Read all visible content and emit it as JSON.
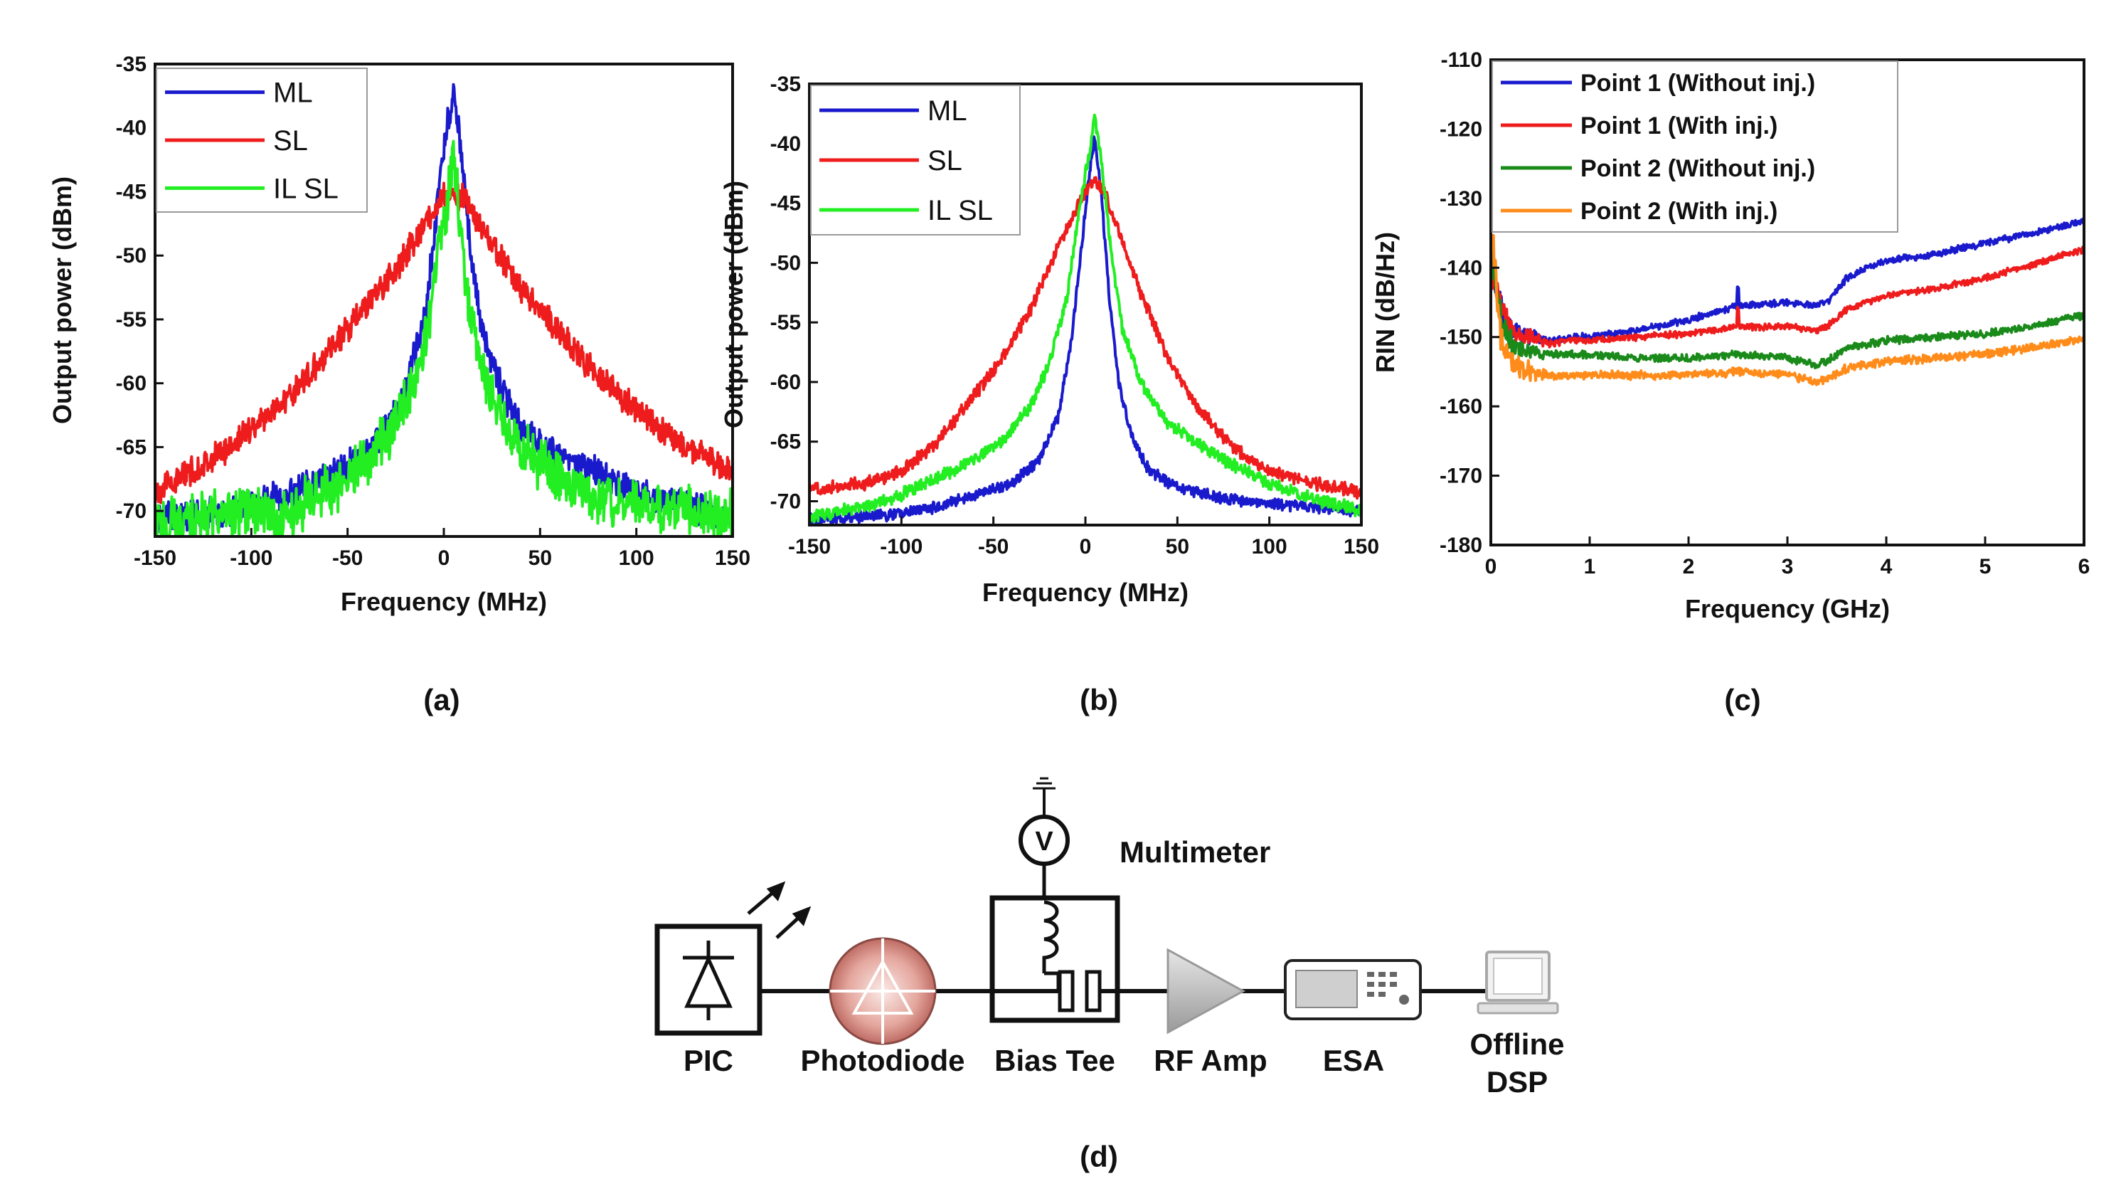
{
  "panels": [
    {
      "key": "a",
      "caption": "(a)",
      "chart_data": {
        "type": "line",
        "xlabel": "Frequency (MHz)",
        "ylabel": "Output power (dBm)",
        "xlim": [
          -150,
          150
        ],
        "ylim": [
          -72,
          -35
        ],
        "xticks": [
          -150,
          -100,
          -50,
          0,
          50,
          100,
          150
        ],
        "yticks": [
          -35,
          -40,
          -45,
          -50,
          -55,
          -60,
          -65,
          -70
        ],
        "legend": "top-left",
        "series": [
          {
            "name": "ML",
            "color": "#1a1acd",
            "noise": 1.0,
            "points": [
              [
                -150,
                -70.5
              ],
              [
                -120,
                -70.2
              ],
              [
                -100,
                -69.5
              ],
              [
                -80,
                -68.7
              ],
              [
                -60,
                -67.2
              ],
              [
                -40,
                -65.5
              ],
              [
                -30,
                -63.5
              ],
              [
                -20,
                -60.5
              ],
              [
                -10,
                -55
              ],
              [
                -4,
                -47
              ],
              [
                0,
                -41.5
              ],
              [
                5,
                -37
              ],
              [
                9,
                -42
              ],
              [
                14,
                -50
              ],
              [
                20,
                -56
              ],
              [
                30,
                -60.5
              ],
              [
                40,
                -63.5
              ],
              [
                55,
                -65.5
              ],
              [
                75,
                -66.5
              ],
              [
                100,
                -68.5
              ],
              [
                125,
                -69.5
              ],
              [
                150,
                -70.5
              ]
            ]
          },
          {
            "name": "SL",
            "color": "#ee1c1c",
            "noise": 0.9,
            "points": [
              [
                -150,
                -68.5
              ],
              [
                -120,
                -66
              ],
              [
                -100,
                -63.5
              ],
              [
                -80,
                -61
              ],
              [
                -60,
                -57.5
              ],
              [
                -40,
                -54
              ],
              [
                -20,
                -50
              ],
              [
                -10,
                -47.5
              ],
              [
                0,
                -45.5
              ],
              [
                5,
                -45.2
              ],
              [
                10,
                -45.5
              ],
              [
                20,
                -48
              ],
              [
                40,
                -52.5
              ],
              [
                60,
                -56
              ],
              [
                80,
                -59.5
              ],
              [
                100,
                -62
              ],
              [
                120,
                -64.5
              ],
              [
                150,
                -67
              ]
            ]
          },
          {
            "name": "IL SL",
            "color": "#22ee22",
            "noise": 1.7,
            "points": [
              [
                -150,
                -71
              ],
              [
                -120,
                -70.5
              ],
              [
                -100,
                -70
              ],
              [
                -85,
                -71
              ],
              [
                -70,
                -69
              ],
              [
                -50,
                -67.5
              ],
              [
                -30,
                -64.5
              ],
              [
                -20,
                -61.5
              ],
              [
                -10,
                -57
              ],
              [
                -4,
                -51
              ],
              [
                0,
                -47.5
              ],
              [
                5,
                -42
              ],
              [
                9,
                -48
              ],
              [
                14,
                -55
              ],
              [
                20,
                -59
              ],
              [
                30,
                -62.5
              ],
              [
                40,
                -65
              ],
              [
                60,
                -67.5
              ],
              [
                80,
                -69
              ],
              [
                100,
                -69.5
              ],
              [
                125,
                -70
              ],
              [
                150,
                -70.5
              ]
            ]
          }
        ]
      }
    },
    {
      "key": "b",
      "caption": "(b)",
      "chart_data": {
        "type": "line",
        "xlabel": "Frequency (MHz)",
        "ylabel": "Output power (dBm)",
        "xlim": [
          -150,
          150
        ],
        "ylim": [
          -72,
          -35
        ],
        "xticks": [
          -150,
          -100,
          -50,
          0,
          50,
          100,
          150
        ],
        "yticks": [
          -35,
          -40,
          -45,
          -50,
          -55,
          -60,
          -65,
          -70
        ],
        "legend": "top-left",
        "series": [
          {
            "name": "ML",
            "color": "#1a1acd",
            "noise": 0.4,
            "points": [
              [
                -150,
                -71.5
              ],
              [
                -120,
                -71.3
              ],
              [
                -100,
                -71
              ],
              [
                -80,
                -70.5
              ],
              [
                -60,
                -69.5
              ],
              [
                -40,
                -68.5
              ],
              [
                -25,
                -66.5
              ],
              [
                -15,
                -63
              ],
              [
                -8,
                -57
              ],
              [
                -3,
                -50
              ],
              [
                1,
                -44
              ],
              [
                5,
                -39.5
              ],
              [
                9,
                -45
              ],
              [
                13,
                -53
              ],
              [
                18,
                -60
              ],
              [
                25,
                -64.5
              ],
              [
                35,
                -67.5
              ],
              [
                50,
                -68.8
              ],
              [
                75,
                -69.8
              ],
              [
                100,
                -70.2
              ],
              [
                125,
                -70.5
              ],
              [
                150,
                -70.8
              ]
            ]
          },
          {
            "name": "SL",
            "color": "#ee1c1c",
            "noise": 0.45,
            "points": [
              [
                -150,
                -69
              ],
              [
                -120,
                -68.5
              ],
              [
                -100,
                -67.5
              ],
              [
                -80,
                -65
              ],
              [
                -60,
                -61
              ],
              [
                -45,
                -58
              ],
              [
                -30,
                -54
              ],
              [
                -20,
                -50.5
              ],
              [
                -10,
                -47
              ],
              [
                0,
                -44
              ],
              [
                5,
                -43
              ],
              [
                10,
                -44
              ],
              [
                20,
                -48
              ],
              [
                30,
                -52.5
              ],
              [
                45,
                -58
              ],
              [
                60,
                -62
              ],
              [
                80,
                -65.5
              ],
              [
                100,
                -67.5
              ],
              [
                125,
                -68.5
              ],
              [
                150,
                -69.3
              ]
            ]
          },
          {
            "name": "IL SL",
            "color": "#22ee22",
            "noise": 0.45,
            "points": [
              [
                -150,
                -71.3
              ],
              [
                -120,
                -70.5
              ],
              [
                -100,
                -69.5
              ],
              [
                -80,
                -68
              ],
              [
                -60,
                -66.5
              ],
              [
                -45,
                -65
              ],
              [
                -30,
                -62
              ],
              [
                -20,
                -58.5
              ],
              [
                -10,
                -53
              ],
              [
                -3,
                -45
              ],
              [
                2,
                -41
              ],
              [
                5,
                -37.5
              ],
              [
                9,
                -42
              ],
              [
                14,
                -49
              ],
              [
                20,
                -55.5
              ],
              [
                30,
                -60
              ],
              [
                45,
                -63.5
              ],
              [
                60,
                -65
              ],
              [
                80,
                -67
              ],
              [
                100,
                -68.5
              ],
              [
                125,
                -69.8
              ],
              [
                150,
                -70.8
              ]
            ]
          }
        ]
      }
    },
    {
      "key": "c",
      "caption": "(c)",
      "chart_data": {
        "type": "line",
        "xlabel": "Frequency (GHz)",
        "ylabel": "RIN (dB/Hz)",
        "xlim": [
          0,
          6
        ],
        "ylim": [
          -180,
          -110
        ],
        "xticks": [
          0,
          1,
          2,
          3,
          4,
          5,
          6
        ],
        "yticks": [
          -110,
          -120,
          -130,
          -140,
          -150,
          -160,
          -170,
          -180
        ],
        "legend": "top-right",
        "series": [
          {
            "name": "Point 1 (Without inj.)",
            "color": "#1a1acd",
            "noise": 0.4,
            "points": [
              [
                0.02,
                -141
              ],
              [
                0.1,
                -146
              ],
              [
                0.2,
                -149
              ],
              [
                0.4,
                -150
              ],
              [
                0.6,
                -150.5
              ],
              [
                0.8,
                -150
              ],
              [
                1,
                -150
              ],
              [
                1.5,
                -149
              ],
              [
                2,
                -147.5
              ],
              [
                2.5,
                -145.5
              ],
              [
                3,
                -145
              ],
              [
                3.3,
                -145.5
              ],
              [
                3.4,
                -145
              ],
              [
                3.6,
                -141.5
              ],
              [
                3.8,
                -140
              ],
              [
                4,
                -139
              ],
              [
                4.5,
                -138
              ],
              [
                5,
                -136.5
              ],
              [
                5.5,
                -135
              ],
              [
                6,
                -133.2
              ]
            ]
          },
          {
            "name": "Point 1 (With inj.)",
            "color": "#ee1c1c",
            "noise": 0.4,
            "points": [
              [
                0.02,
                -141
              ],
              [
                0.1,
                -146
              ],
              [
                0.2,
                -149
              ],
              [
                0.4,
                -150
              ],
              [
                0.6,
                -151
              ],
              [
                0.8,
                -150.5
              ],
              [
                1,
                -150.5
              ],
              [
                1.5,
                -150
              ],
              [
                2,
                -149.5
              ],
              [
                2.5,
                -148.5
              ],
              [
                3,
                -148.5
              ],
              [
                3.3,
                -149
              ],
              [
                3.4,
                -148.5
              ],
              [
                3.6,
                -146
              ],
              [
                3.8,
                -145
              ],
              [
                4,
                -144
              ],
              [
                4.5,
                -143
              ],
              [
                5,
                -141.5
              ],
              [
                5.5,
                -139.5
              ],
              [
                6,
                -137.3
              ]
            ]
          },
          {
            "name": "Point 2 (Without inj.)",
            "color": "#1a8a1a",
            "noise": 0.45,
            "points": [
              [
                0.02,
                -139
              ],
              [
                0.1,
                -147
              ],
              [
                0.2,
                -151
              ],
              [
                0.4,
                -152
              ],
              [
                0.6,
                -152.5
              ],
              [
                0.8,
                -152.5
              ],
              [
                1,
                -152.5
              ],
              [
                1.5,
                -153
              ],
              [
                2,
                -153
              ],
              [
                2.5,
                -152.5
              ],
              [
                3,
                -153
              ],
              [
                3.3,
                -154
              ],
              [
                3.4,
                -153.5
              ],
              [
                3.6,
                -151.5
              ],
              [
                3.8,
                -151
              ],
              [
                4,
                -150.5
              ],
              [
                4.5,
                -150
              ],
              [
                5,
                -149.5
              ],
              [
                5.5,
                -148.5
              ],
              [
                6,
                -146.8
              ]
            ]
          },
          {
            "name": "Point 2 (With inj.)",
            "color": "#ff8c1a",
            "noise": 0.5,
            "points": [
              [
                0.02,
                -136
              ],
              [
                0.1,
                -150
              ],
              [
                0.2,
                -154
              ],
              [
                0.4,
                -155
              ],
              [
                0.6,
                -155.5
              ],
              [
                0.8,
                -155.5
              ],
              [
                1,
                -155.5
              ],
              [
                1.5,
                -155.5
              ],
              [
                2,
                -155.5
              ],
              [
                2.5,
                -155
              ],
              [
                3,
                -155.5
              ],
              [
                3.3,
                -156.5
              ],
              [
                3.4,
                -156
              ],
              [
                3.6,
                -154.5
              ],
              [
                3.8,
                -154
              ],
              [
                4,
                -153.5
              ],
              [
                4.5,
                -153
              ],
              [
                5,
                -152.5
              ],
              [
                5.5,
                -151.5
              ],
              [
                6,
                -150.3
              ]
            ]
          }
        ]
      }
    }
  ],
  "diagram": {
    "caption": "(d)",
    "multimeter_label": "Multimeter",
    "voltmeter_symbol": "V",
    "labels": {
      "pic": "PIC",
      "photodiode": "Photodiode",
      "bias_tee": "Bias Tee",
      "rf_amp": "RF Amp",
      "esa": "ESA",
      "dsp_line1": "Offline",
      "dsp_line2": "DSP"
    }
  }
}
